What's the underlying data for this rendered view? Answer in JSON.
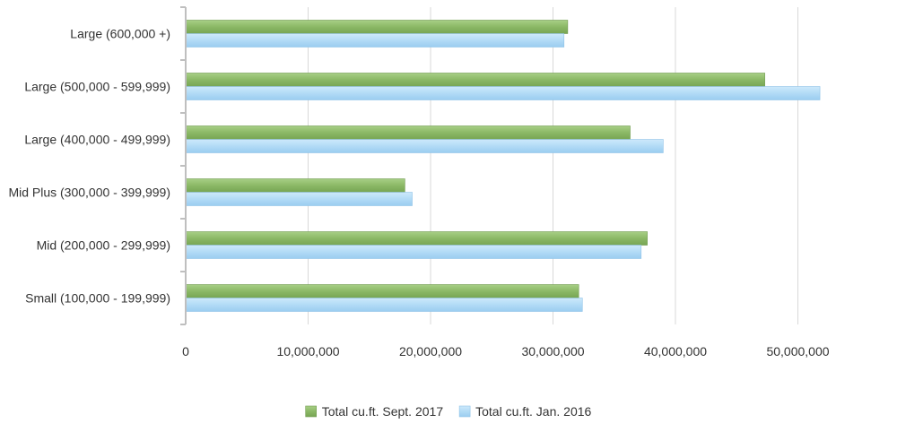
{
  "chart_data": {
    "type": "bar",
    "orientation": "horizontal",
    "title": "",
    "xlabel": "",
    "ylabel": "",
    "categories": [
      "Large (600,000 +)",
      "Large (500,000 - 599,999)",
      "Large (400,000 - 499,999)",
      "Mid Plus (300,000 - 399,999)",
      "Mid (200,000 - 299,999)",
      "Small (100,000 - 199,999)"
    ],
    "series": [
      {
        "name": "Total cu.ft. Sept. 2017",
        "color": "#8db86a",
        "values": [
          31200000,
          47300000,
          36300000,
          17900000,
          37700000,
          32100000
        ]
      },
      {
        "name": "Total cu.ft. Jan. 2016",
        "color": "#b3dcf6",
        "values": [
          30900000,
          51800000,
          39000000,
          18500000,
          37200000,
          32400000
        ]
      }
    ],
    "xlim": [
      0,
      58000000
    ],
    "xticks": [
      0,
      10000000,
      20000000,
      30000000,
      40000000,
      50000000
    ],
    "xtick_labels": [
      "0",
      "10,000,000",
      "20,000,000",
      "30,000,000",
      "40,000,000",
      "50,000,000"
    ],
    "grid": true,
    "legend_position": "bottom-center"
  }
}
